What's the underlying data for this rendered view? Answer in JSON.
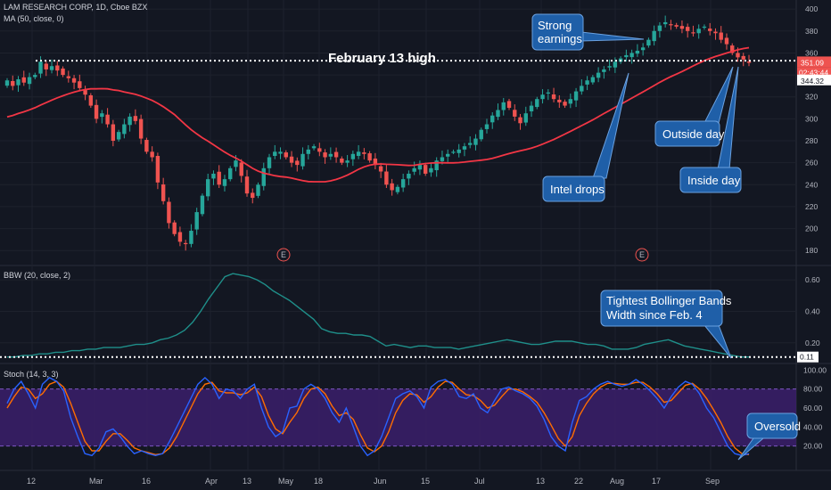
{
  "header": {
    "symbol_line": "LAM RESEARCH CORP, 1D, Cboe BZX",
    "ma_line": "MA (50, close, 0)"
  },
  "colors": {
    "background": "#131722",
    "up": "#26a69a",
    "down": "#ef5350",
    "ma": "#f23645",
    "bbw": "#1f8f8a",
    "stoch_k": "#2962ff",
    "stoch_d": "#ff6d00",
    "stoch_band": "#3b1f6b",
    "annotation": "#1f5fa8",
    "grid": "#1e222d"
  },
  "chart_data": [
    {
      "type": "candlestick",
      "title": "LAM RESEARCH CORP, 1D, Cboe BZX",
      "ylim": [
        168,
        405
      ],
      "yticks": [
        180,
        200,
        220,
        240,
        260,
        280,
        300,
        320,
        340,
        360,
        380,
        400
      ],
      "x_ticks": [
        "12",
        "Mar",
        "16",
        "Apr",
        "13",
        "May",
        "18",
        "Jun",
        "15",
        "Jul",
        "13",
        "22",
        "Aug",
        "17",
        "Sep"
      ],
      "price_tags": [
        {
          "label": "351.09",
          "value": 351.09,
          "color": "#ef5350"
        },
        {
          "label": "02:43:44",
          "value": 344.32,
          "color": "#ef5350",
          "offset": 1
        },
        {
          "label": "344.32",
          "value": 344.32,
          "color": "#ffffff"
        }
      ],
      "reference_line": {
        "label": "February 13 high",
        "value": 353
      },
      "earnings_markers": [
        "E",
        "E"
      ],
      "series": [
        {
          "name": "MA (50, close, 0)",
          "values_hint": "50-day moving average"
        }
      ],
      "closes": [
        335,
        330,
        336,
        333,
        338,
        340,
        352,
        345,
        348,
        344,
        340,
        337,
        333,
        328,
        322,
        312,
        300,
        305,
        295,
        280,
        288,
        295,
        302,
        298,
        282,
        270,
        265,
        242,
        225,
        205,
        195,
        188,
        186,
        198,
        215,
        230,
        245,
        250,
        240,
        245,
        255,
        262,
        248,
        232,
        228,
        240,
        255,
        265,
        270,
        270,
        265,
        260,
        258,
        268,
        272,
        275,
        270,
        265,
        268,
        265,
        260,
        262,
        268,
        270,
        268,
        262,
        258,
        252,
        240,
        235,
        238,
        245,
        250,
        255,
        258,
        250,
        255,
        262,
        265,
        268,
        270,
        272,
        275,
        278,
        282,
        290,
        295,
        303,
        308,
        315,
        310,
        302,
        296,
        305,
        312,
        318,
        322,
        324,
        318,
        315,
        312,
        318,
        325,
        330,
        335,
        338,
        342,
        345,
        348,
        352,
        355,
        358,
        360,
        362,
        365,
        372,
        380,
        385,
        388,
        386,
        384,
        382,
        380,
        378,
        382,
        384,
        380,
        378,
        372,
        368,
        360,
        356,
        354,
        351
      ],
      "annotations": [
        "February 13 high",
        "Strong earnings",
        "Intel drops",
        "Outside day",
        "Inside day"
      ]
    },
    {
      "type": "line",
      "title": "BBW (20, close, 2)",
      "ylim": [
        0.08,
        0.68
      ],
      "yticks": [
        0.2,
        0.4,
        0.6
      ],
      "ytick_labels": [
        "0.20",
        "0.40",
        "0.60"
      ],
      "value_tag": "0.11",
      "series": [
        {
          "name": "BBW (20, close, 2)",
          "values": [
            0.11,
            0.11,
            0.12,
            0.12,
            0.13,
            0.13,
            0.14,
            0.14,
            0.15,
            0.15,
            0.16,
            0.16,
            0.17,
            0.17,
            0.17,
            0.18,
            0.19,
            0.19,
            0.2,
            0.22,
            0.23,
            0.25,
            0.28,
            0.33,
            0.4,
            0.48,
            0.55,
            0.62,
            0.64,
            0.63,
            0.62,
            0.6,
            0.57,
            0.53,
            0.5,
            0.47,
            0.43,
            0.39,
            0.35,
            0.29,
            0.27,
            0.26,
            0.26,
            0.25,
            0.25,
            0.24,
            0.21,
            0.18,
            0.19,
            0.18,
            0.17,
            0.18,
            0.18,
            0.17,
            0.17,
            0.17,
            0.16,
            0.17,
            0.18,
            0.19,
            0.2,
            0.21,
            0.22,
            0.21,
            0.2,
            0.19,
            0.19,
            0.2,
            0.21,
            0.21,
            0.21,
            0.2,
            0.19,
            0.19,
            0.18,
            0.16,
            0.16,
            0.16,
            0.17,
            0.19,
            0.2,
            0.21,
            0.22,
            0.2,
            0.18,
            0.17,
            0.16,
            0.15,
            0.14,
            0.13,
            0.12,
            0.11,
            0.11
          ]
        }
      ],
      "reference_line": {
        "value": 0.11
      },
      "annotations": [
        "Tightest Bollinger Bands Width since Feb. 4"
      ]
    },
    {
      "type": "line",
      "title": "Stoch (14, 3, 3)",
      "ylim": [
        0,
        105
      ],
      "yticks": [
        20,
        40,
        60,
        80,
        100
      ],
      "ytick_labels": [
        "20.00",
        "40.00",
        "60.00",
        "80.00",
        "100.00"
      ],
      "band": [
        20,
        80
      ],
      "series": [
        {
          "name": "%K",
          "values": [
            65,
            80,
            88,
            75,
            60,
            85,
            92,
            88,
            78,
            50,
            30,
            12,
            10,
            18,
            35,
            38,
            30,
            20,
            12,
            15,
            12,
            10,
            12,
            25,
            40,
            55,
            70,
            85,
            92,
            85,
            70,
            80,
            78,
            70,
            80,
            85,
            60,
            40,
            30,
            35,
            60,
            62,
            80,
            85,
            80,
            70,
            55,
            45,
            60,
            40,
            20,
            10,
            15,
            30,
            50,
            70,
            75,
            78,
            72,
            60,
            82,
            88,
            90,
            85,
            72,
            70,
            75,
            60,
            55,
            68,
            80,
            82,
            78,
            75,
            70,
            62,
            48,
            30,
            20,
            15,
            45,
            68,
            72,
            80,
            85,
            88,
            85,
            83,
            85,
            90,
            85,
            78,
            70,
            60,
            72,
            82,
            88,
            85,
            75,
            60,
            50,
            35,
            20,
            12,
            10,
            12
          ]
        },
        {
          "name": "%D",
          "values": [
            60,
            72,
            82,
            80,
            70,
            75,
            85,
            88,
            82,
            65,
            45,
            25,
            15,
            15,
            25,
            33,
            33,
            26,
            18,
            15,
            13,
            11,
            12,
            18,
            30,
            45,
            60,
            75,
            85,
            87,
            78,
            76,
            76,
            74,
            76,
            82,
            72,
            52,
            38,
            33,
            45,
            55,
            70,
            80,
            82,
            75,
            62,
            52,
            55,
            48,
            32,
            18,
            14,
            20,
            35,
            55,
            68,
            75,
            74,
            66,
            72,
            82,
            88,
            87,
            80,
            74,
            73,
            68,
            60,
            63,
            72,
            80,
            80,
            77,
            72,
            66,
            55,
            42,
            28,
            20,
            30,
            52,
            65,
            75,
            82,
            86,
            86,
            85,
            85,
            87,
            87,
            82,
            75,
            66,
            68,
            76,
            84,
            86,
            80,
            70,
            58,
            45,
            30,
            18,
            12,
            11
          ]
        }
      ],
      "annotations": [
        "Oversold"
      ]
    }
  ]
}
